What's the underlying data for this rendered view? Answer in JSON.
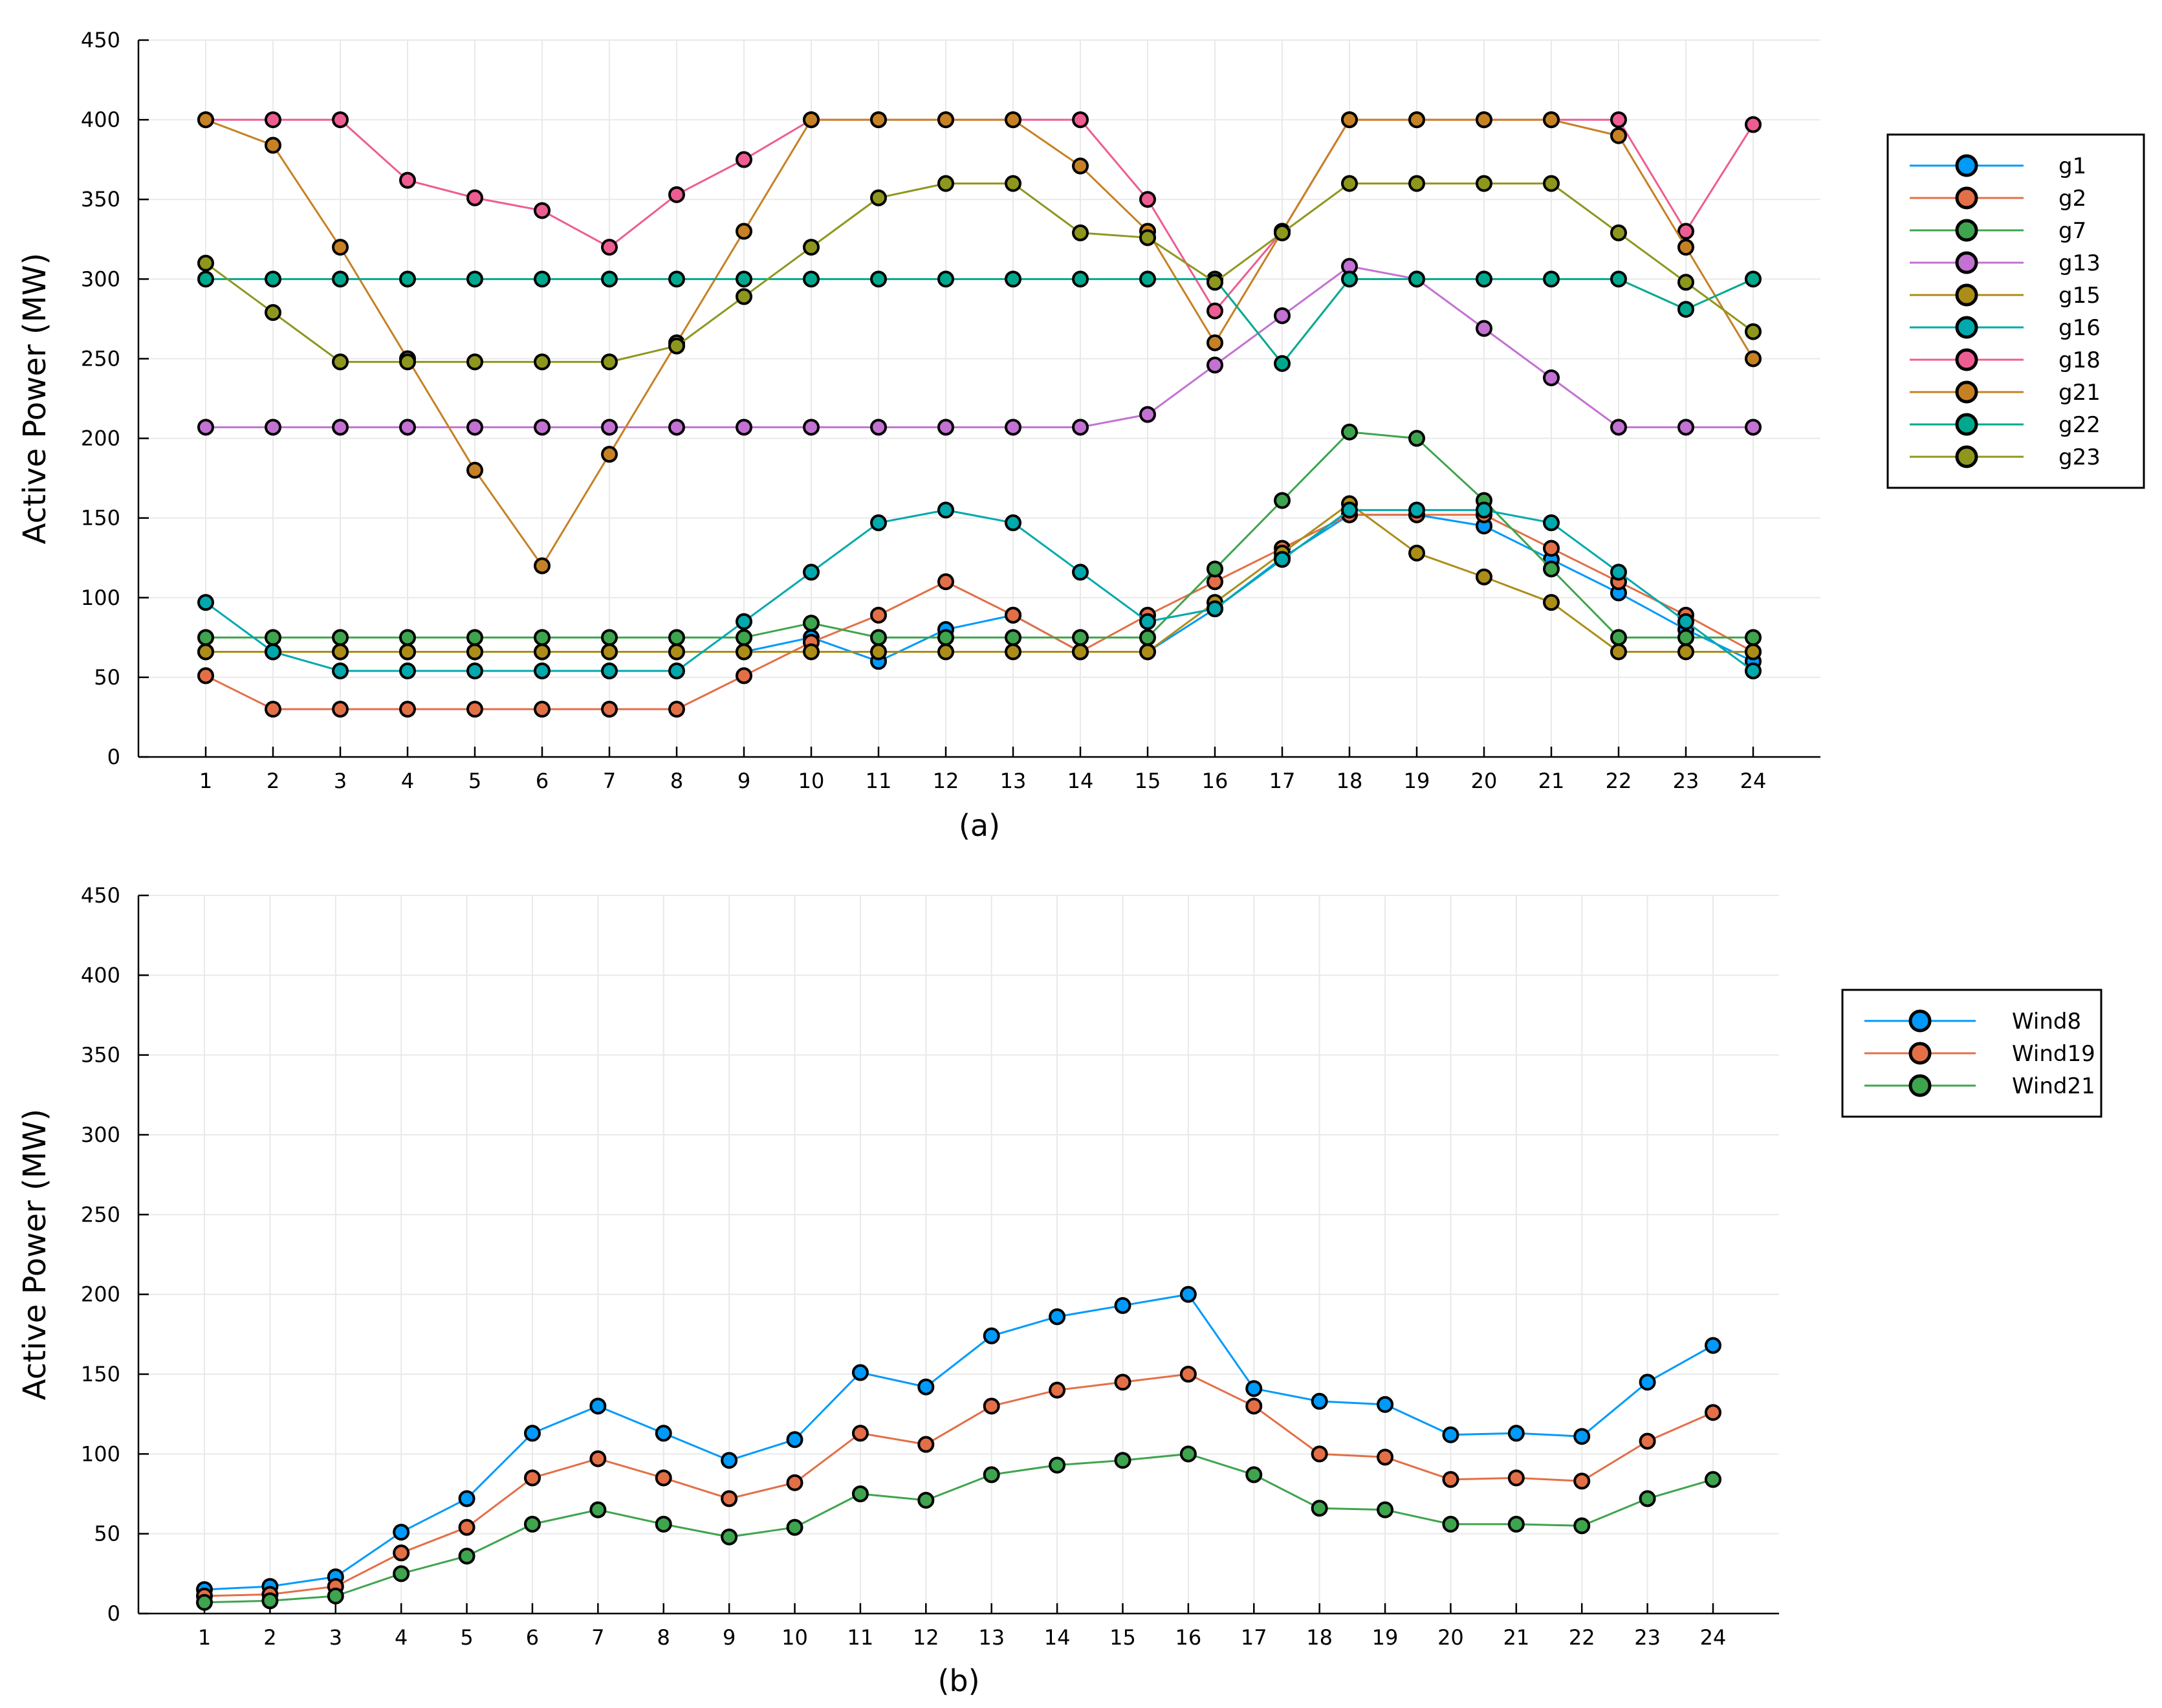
{
  "chart_data": [
    {
      "type": "line",
      "title": "",
      "caption": "(a)",
      "xlabel": "",
      "ylabel": "Active Power (MW)",
      "ylim": [
        0,
        450
      ],
      "yticks": [
        0,
        50,
        100,
        150,
        200,
        250,
        300,
        350,
        400,
        450
      ],
      "xticks": [
        1,
        2,
        3,
        4,
        5,
        6,
        7,
        8,
        9,
        10,
        11,
        12,
        13,
        14,
        15,
        16,
        17,
        18,
        19,
        20,
        21,
        22,
        23,
        24
      ],
      "grid": true,
      "legend_position": "right",
      "x": [
        1,
        2,
        3,
        4,
        5,
        6,
        7,
        8,
        9,
        10,
        11,
        12,
        13,
        14,
        15,
        16,
        17,
        18,
        19,
        20,
        21,
        22,
        23,
        24
      ],
      "series": [
        {
          "name": "g1",
          "color": "#009AFA",
          "values": [
            66,
            66,
            66,
            66,
            66,
            66,
            66,
            66,
            66,
            75,
            60,
            80,
            89,
            66,
            66,
            93,
            125,
            152,
            152,
            145,
            124,
            103,
            80,
            60
          ]
        },
        {
          "name": "g2",
          "color": "#E36F47",
          "values": [
            51,
            30,
            30,
            30,
            30,
            30,
            30,
            30,
            51,
            72,
            89,
            110,
            89,
            66,
            89,
            110,
            131,
            152,
            152,
            152,
            131,
            110,
            89,
            66
          ]
        },
        {
          "name": "g7",
          "color": "#3EA44E",
          "values": [
            75,
            75,
            75,
            75,
            75,
            75,
            75,
            75,
            75,
            84,
            75,
            75,
            75,
            75,
            75,
            118,
            161,
            204,
            200,
            161,
            118,
            75,
            75,
            75
          ]
        },
        {
          "name": "g13",
          "color": "#C371D2",
          "values": [
            207,
            207,
            207,
            207,
            207,
            207,
            207,
            207,
            207,
            207,
            207,
            207,
            207,
            207,
            215,
            246,
            277,
            308,
            300,
            269,
            238,
            207,
            207,
            207
          ]
        },
        {
          "name": "g15",
          "color": "#AC8D18",
          "values": [
            66,
            66,
            66,
            66,
            66,
            66,
            66,
            66,
            66,
            66,
            66,
            66,
            66,
            66,
            66,
            97,
            128,
            159,
            128,
            113,
            97,
            66,
            66,
            66
          ]
        },
        {
          "name": "g16",
          "color": "#00A9AD",
          "values": [
            97,
            66,
            54,
            54,
            54,
            54,
            54,
            54,
            85,
            116,
            147,
            155,
            147,
            116,
            85,
            93,
            124,
            155,
            155,
            155,
            147,
            116,
            85,
            54
          ]
        },
        {
          "name": "g18",
          "color": "#ED5D92",
          "values": [
            400,
            400,
            400,
            362,
            351,
            343,
            320,
            353,
            375,
            400,
            400,
            400,
            400,
            400,
            350,
            280,
            330,
            400,
            400,
            400,
            400,
            400,
            330,
            397
          ]
        },
        {
          "name": "g21",
          "color": "#C68125",
          "values": [
            400,
            384,
            320,
            250,
            180,
            120,
            190,
            260,
            330,
            400,
            400,
            400,
            400,
            371,
            330,
            260,
            330,
            400,
            400,
            400,
            400,
            390,
            320,
            250
          ]
        },
        {
          "name": "g22",
          "color": "#00A98D",
          "values": [
            300,
            300,
            300,
            300,
            300,
            300,
            300,
            300,
            300,
            300,
            300,
            300,
            300,
            300,
            300,
            300,
            247,
            300,
            300,
            300,
            300,
            300,
            281,
            300
          ]
        },
        {
          "name": "g23",
          "color": "#8E971D",
          "values": [
            310,
            279,
            248,
            248,
            248,
            248,
            248,
            258,
            289,
            320,
            351,
            360,
            360,
            329,
            326,
            298,
            329,
            360,
            360,
            360,
            360,
            329,
            298,
            267
          ]
        }
      ]
    },
    {
      "type": "line",
      "title": "",
      "caption": "(b)",
      "xlabel": "",
      "ylabel": "Active Power (MW)",
      "ylim": [
        0,
        450
      ],
      "yticks": [
        0,
        50,
        100,
        150,
        200,
        250,
        300,
        350,
        400,
        450
      ],
      "xticks": [
        1,
        2,
        3,
        4,
        5,
        6,
        7,
        8,
        9,
        10,
        11,
        12,
        13,
        14,
        15,
        16,
        17,
        18,
        19,
        20,
        21,
        22,
        23,
        24
      ],
      "grid": true,
      "legend_position": "right",
      "x": [
        1,
        2,
        3,
        4,
        5,
        6,
        7,
        8,
        9,
        10,
        11,
        12,
        13,
        14,
        15,
        16,
        17,
        18,
        19,
        20,
        21,
        22,
        23,
        24
      ],
      "series": [
        {
          "name": "Wind8",
          "color": "#009AFA",
          "values": [
            15,
            17,
            23,
            51,
            72,
            113,
            130,
            113,
            96,
            109,
            151,
            142,
            174,
            186,
            193,
            200,
            141,
            133,
            131,
            112,
            113,
            111,
            145,
            168
          ]
        },
        {
          "name": "Wind19",
          "color": "#E36F47",
          "values": [
            11,
            12,
            17,
            38,
            54,
            85,
            97,
            85,
            72,
            82,
            113,
            106,
            130,
            140,
            145,
            150,
            130,
            100,
            98,
            84,
            85,
            83,
            108,
            126
          ]
        },
        {
          "name": "Wind21",
          "color": "#3EA44E",
          "values": [
            7,
            8,
            11,
            25,
            36,
            56,
            65,
            56,
            48,
            54,
            75,
            71,
            87,
            93,
            96,
            100,
            87,
            66,
            65,
            56,
            56,
            55,
            72,
            84
          ]
        }
      ]
    }
  ]
}
